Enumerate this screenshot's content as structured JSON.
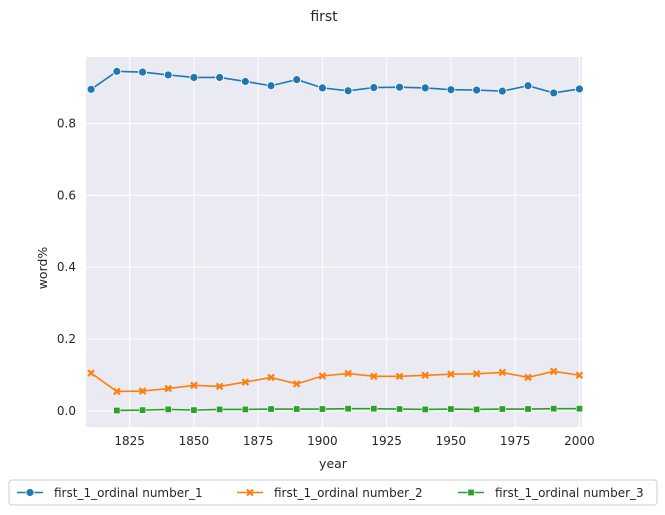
{
  "chart_data": {
    "type": "line",
    "title": "first",
    "xlabel": "year",
    "ylabel": "word%",
    "xlim": [
      1808,
      2001
    ],
    "ylim": [
      -0.045,
      0.985
    ],
    "xticks": [
      1825,
      1850,
      1875,
      1900,
      1925,
      1950,
      1975,
      2000
    ],
    "yticks": [
      0.0,
      0.2,
      0.4,
      0.6,
      0.8
    ],
    "grid": true,
    "legend_position": "bottom",
    "series": [
      {
        "name": "first_1_ordinal number_1",
        "color": "#1f77b4",
        "marker": "circle",
        "x": [
          1810,
          1820,
          1830,
          1840,
          1850,
          1860,
          1870,
          1880,
          1890,
          1900,
          1910,
          1920,
          1930,
          1940,
          1950,
          1960,
          1970,
          1980,
          1990,
          2000
        ],
        "y": [
          0.895,
          0.945,
          0.943,
          0.935,
          0.928,
          0.928,
          0.917,
          0.905,
          0.922,
          0.899,
          0.891,
          0.9,
          0.901,
          0.899,
          0.894,
          0.893,
          0.89,
          0.905,
          0.885,
          0.896
        ]
      },
      {
        "name": "first_1_ordinal number_2",
        "color": "#ff7f0e",
        "marker": "x",
        "x": [
          1810,
          1820,
          1830,
          1840,
          1850,
          1860,
          1870,
          1880,
          1890,
          1900,
          1910,
          1920,
          1930,
          1940,
          1950,
          1960,
          1970,
          1980,
          1990,
          2000
        ],
        "y": [
          0.105,
          0.054,
          0.055,
          0.062,
          0.071,
          0.068,
          0.08,
          0.093,
          0.075,
          0.097,
          0.104,
          0.096,
          0.096,
          0.099,
          0.102,
          0.103,
          0.107,
          0.093,
          0.11,
          0.099
        ]
      },
      {
        "name": "first_1_ordinal number_3",
        "color": "#2ca02c",
        "marker": "square",
        "x": [
          1820,
          1830,
          1840,
          1850,
          1860,
          1870,
          1880,
          1890,
          1900,
          1910,
          1920,
          1930,
          1940,
          1950,
          1960,
          1970,
          1980,
          1990,
          2000
        ],
        "y": [
          0.001,
          0.002,
          0.004,
          0.002,
          0.004,
          0.004,
          0.005,
          0.005,
          0.005,
          0.006,
          0.006,
          0.005,
          0.004,
          0.005,
          0.004,
          0.005,
          0.005,
          0.006,
          0.006
        ]
      }
    ]
  }
}
